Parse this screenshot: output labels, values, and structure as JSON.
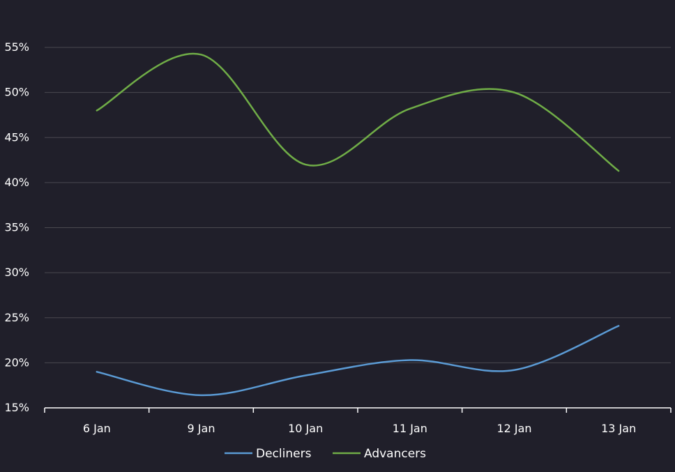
{
  "chart_data": {
    "type": "line",
    "categories": [
      "6 Jan",
      "9 Jan",
      "10 Jan",
      "11 Jan",
      "12 Jan",
      "13 Jan"
    ],
    "ylim": [
      15,
      55
    ],
    "yticks": [
      "15%",
      "20%",
      "25%",
      "30%",
      "35%",
      "40%",
      "45%",
      "50%",
      "55%"
    ],
    "ytick_values": [
      15,
      20,
      25,
      30,
      35,
      40,
      45,
      50,
      55
    ],
    "grid": true,
    "smooth": true,
    "legend_position": "bottom",
    "series": [
      {
        "name": "Decliners",
        "color": "#5b9bd5",
        "values": [
          19.0,
          16.4,
          18.6,
          20.3,
          19.2,
          24.1
        ]
      },
      {
        "name": "Advancers",
        "color": "#70ad47",
        "values": [
          48.0,
          54.2,
          42.0,
          48.2,
          50.0,
          41.3
        ]
      }
    ],
    "colors": {
      "background": "#201f2a",
      "grid": "#4a4950",
      "axis": "#ffffff",
      "text": "#ffffff"
    }
  }
}
